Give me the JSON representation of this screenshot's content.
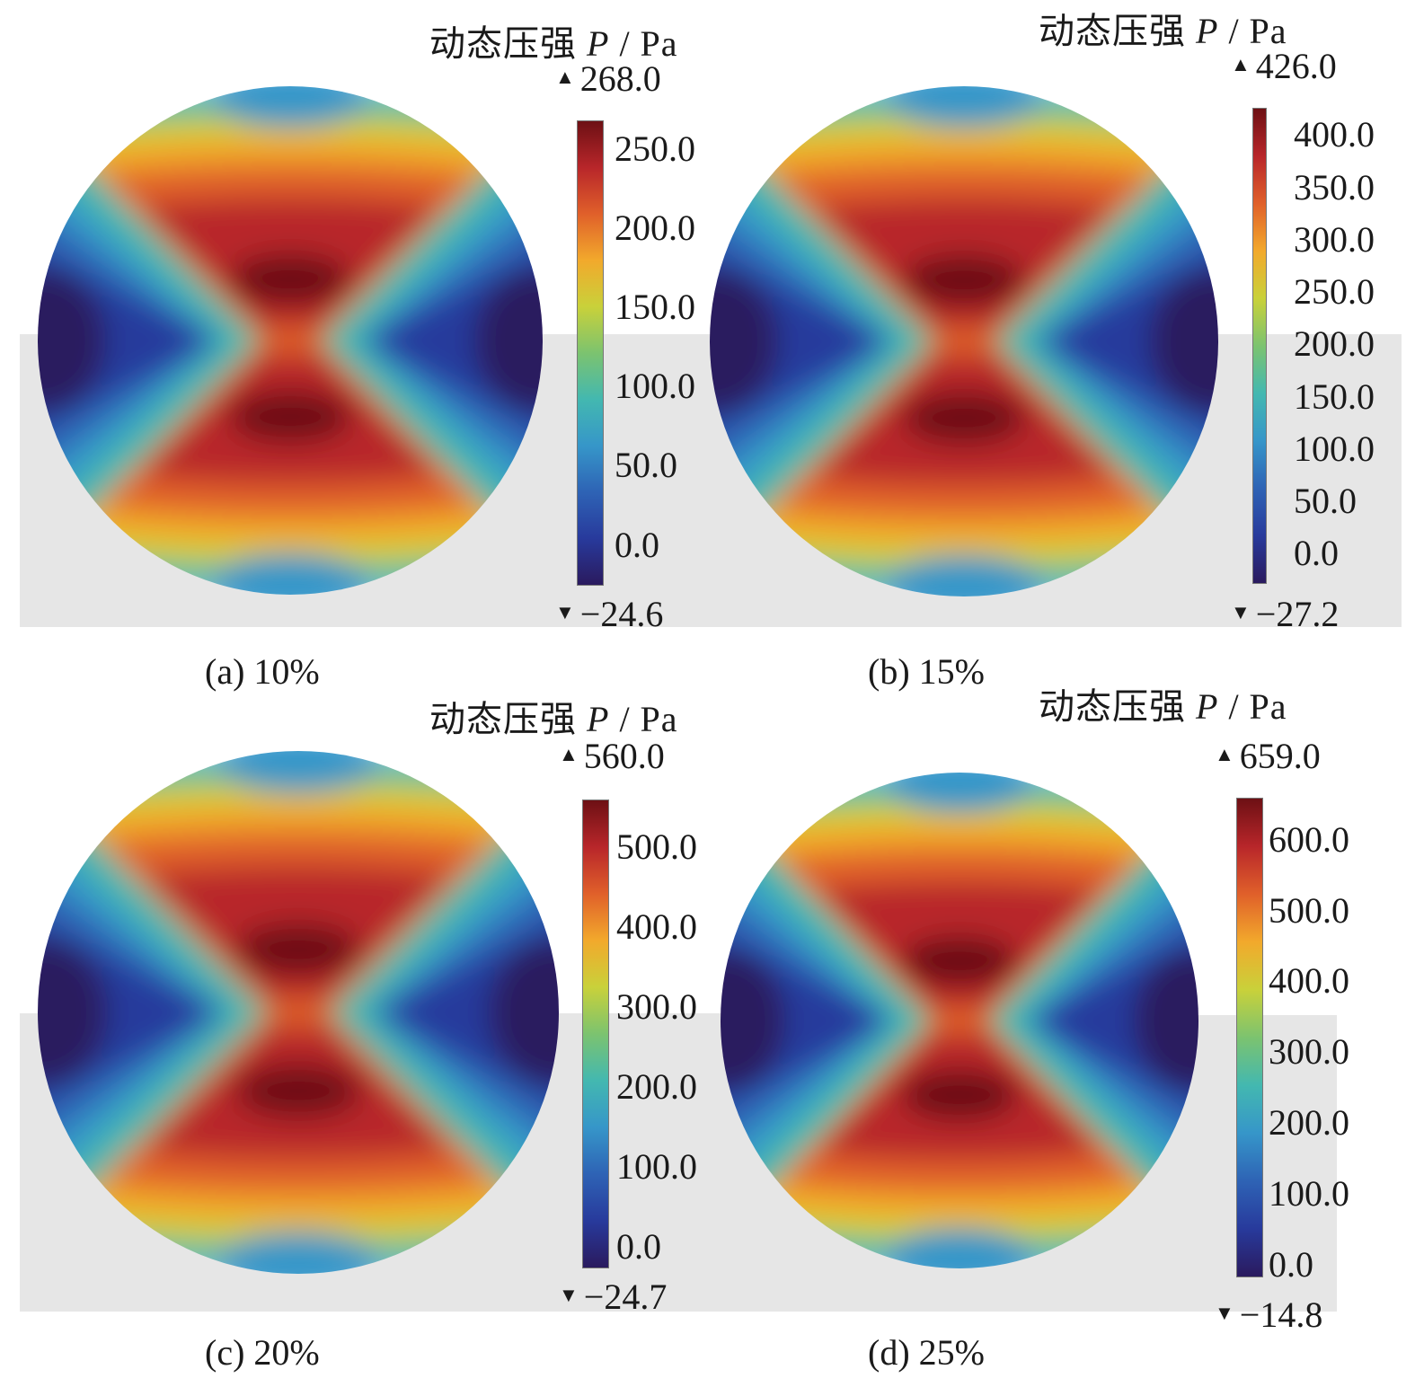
{
  "colormap": [
    "#2a1a5e",
    "#283a9c",
    "#2e63b5",
    "#3696c9",
    "#43b8b0",
    "#7cc36f",
    "#c9d13a",
    "#f2a92c",
    "#e0602a",
    "#b8262a",
    "#6d1014"
  ],
  "chart_data": [
    {
      "type": "heatmap",
      "panel": "a",
      "caption": "(a) 10%",
      "colorbar_title": "动态压强",
      "colorbar_symbol": "P",
      "colorbar_unit": "/ Pa",
      "max": "268.0",
      "min": "−24.6",
      "vmax": 268.0,
      "vmin": -24.6,
      "ticks": [
        "250.0",
        "200.0",
        "150.0",
        "100.0",
        "50.0",
        "0.0"
      ],
      "tick_values": [
        250,
        200,
        150,
        100,
        50,
        0
      ]
    },
    {
      "type": "heatmap",
      "panel": "b",
      "caption": "(b) 15%",
      "colorbar_title": "动态压强",
      "colorbar_symbol": "P",
      "colorbar_unit": "/ Pa",
      "max": "426.0",
      "min": "−27.2",
      "vmax": 426.0,
      "vmin": -27.2,
      "ticks": [
        "400.0",
        "350.0",
        "300.0",
        "250.0",
        "200.0",
        "150.0",
        "100.0",
        "50.0",
        "0.0"
      ],
      "tick_values": [
        400,
        350,
        300,
        250,
        200,
        150,
        100,
        50,
        0
      ]
    },
    {
      "type": "heatmap",
      "panel": "c",
      "caption": "(c) 20%",
      "colorbar_title": "动态压强",
      "colorbar_symbol": "P",
      "colorbar_unit": "/ Pa",
      "max": "560.0",
      "min": "−24.7",
      "vmax": 560.0,
      "vmin": -24.7,
      "ticks": [
        "500.0",
        "400.0",
        "300.0",
        "200.0",
        "100.0",
        "0.0"
      ],
      "tick_values": [
        500,
        400,
        300,
        200,
        100,
        0
      ]
    },
    {
      "type": "heatmap",
      "panel": "d",
      "caption": "(d) 25%",
      "colorbar_title": "动态压强",
      "colorbar_symbol": "P",
      "colorbar_unit": "/ Pa",
      "max": "659.0",
      "min": "−14.8",
      "vmax": 659.0,
      "vmin": -14.8,
      "ticks": [
        "600.0",
        "500.0",
        "400.0",
        "300.0",
        "200.0",
        "100.0",
        "0.0"
      ],
      "tick_values": [
        600,
        500,
        400,
        300,
        200,
        100,
        0
      ]
    }
  ]
}
